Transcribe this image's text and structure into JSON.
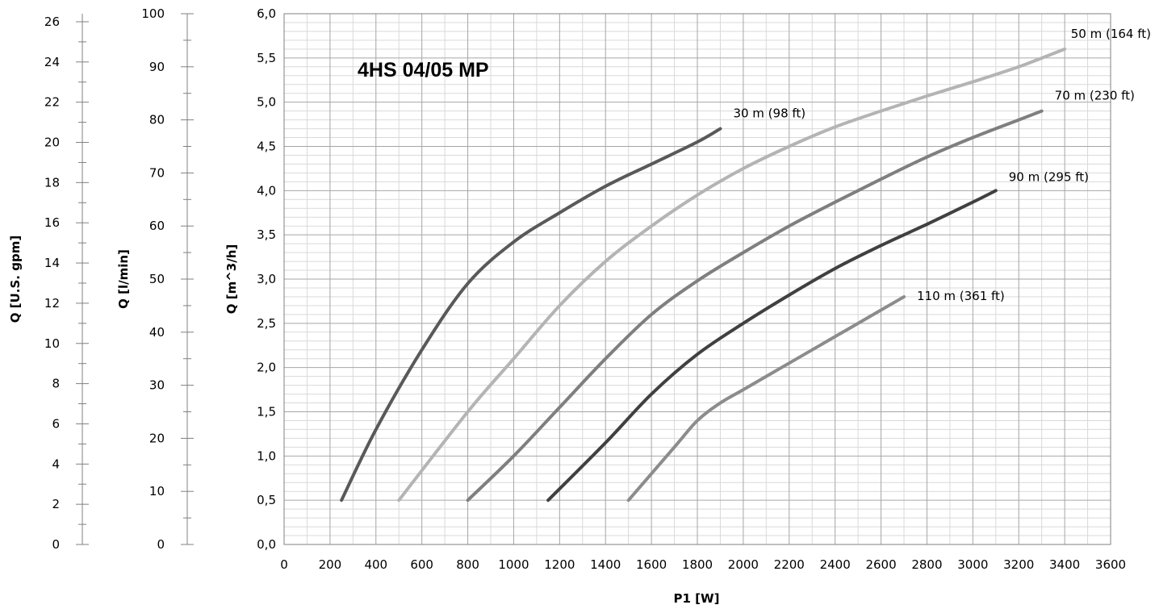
{
  "chart_data": {
    "type": "line",
    "title": "4HS 04/05 MP",
    "xlabel": "P1 [W]",
    "ylabel": "Q  [m^3/h]",
    "xlim": [
      0,
      3600
    ],
    "ylim": [
      0,
      6
    ],
    "grid": true,
    "x_ticks": [
      "0",
      "200",
      "400",
      "600",
      "800",
      "1000",
      "1200",
      "1400",
      "1600",
      "1800",
      "2000",
      "2200",
      "2400",
      "2600",
      "2800",
      "3000",
      "3200",
      "3400",
      "3600"
    ],
    "y_ticks": [
      "0,0",
      "0,5",
      "1,0",
      "1,5",
      "2,0",
      "2,5",
      "3,0",
      "3,5",
      "4,0",
      "4,5",
      "5,0",
      "5,5",
      "6,0"
    ],
    "secondary_axes": [
      {
        "label": "Q  [l/min]",
        "range": [
          0,
          100
        ],
        "ticks": [
          "0",
          "10",
          "20",
          "30",
          "40",
          "50",
          "60",
          "70",
          "80",
          "90",
          "100"
        ]
      },
      {
        "label": "Q  [U.S. gpm]",
        "range": [
          0,
          26.4
        ],
        "ticks": [
          "0",
          "2",
          "4",
          "6",
          "8",
          "10",
          "12",
          "14",
          "16",
          "18",
          "20",
          "22",
          "24",
          "26"
        ]
      }
    ],
    "series": [
      {
        "name": "30 m (98 ft)",
        "color": "#595959",
        "x": [
          250,
          400,
          600,
          800,
          1000,
          1200,
          1400,
          1600,
          1800,
          1900
        ],
        "y": [
          0.5,
          1.3,
          2.2,
          2.95,
          3.42,
          3.75,
          4.05,
          4.3,
          4.55,
          4.7
        ]
      },
      {
        "name": "50 m (164 ft)",
        "color": "#b4b4b4",
        "x": [
          500,
          800,
          1000,
          1200,
          1400,
          1600,
          1800,
          2000,
          2200,
          2400,
          2600,
          2800,
          3000,
          3200,
          3400
        ],
        "y": [
          0.5,
          1.5,
          2.1,
          2.7,
          3.2,
          3.6,
          3.95,
          4.25,
          4.5,
          4.72,
          4.9,
          5.07,
          5.23,
          5.4,
          5.6
        ]
      },
      {
        "name": "70 m (230 ft)",
        "color": "#7f7f7f",
        "x": [
          800,
          1000,
          1200,
          1400,
          1600,
          1800,
          2000,
          2200,
          2400,
          2600,
          2800,
          3000,
          3200,
          3300
        ],
        "y": [
          0.5,
          1.0,
          1.55,
          2.1,
          2.6,
          2.98,
          3.3,
          3.6,
          3.87,
          4.13,
          4.38,
          4.6,
          4.8,
          4.9
        ]
      },
      {
        "name": "90 m (295 ft)",
        "color": "#404040",
        "x": [
          1150,
          1400,
          1600,
          1800,
          2000,
          2200,
          2400,
          2600,
          2800,
          3000,
          3100
        ],
        "y": [
          0.5,
          1.15,
          1.7,
          2.15,
          2.5,
          2.82,
          3.12,
          3.38,
          3.62,
          3.87,
          4.0
        ]
      },
      {
        "name": "110 m (361 ft)",
        "color": "#8c8c8c",
        "x": [
          1500,
          1700,
          1800,
          1900,
          2000,
          2200,
          2400,
          2600,
          2700
        ],
        "y": [
          0.5,
          1.1,
          1.4,
          1.6,
          1.75,
          2.05,
          2.35,
          2.65,
          2.8
        ]
      }
    ]
  }
}
